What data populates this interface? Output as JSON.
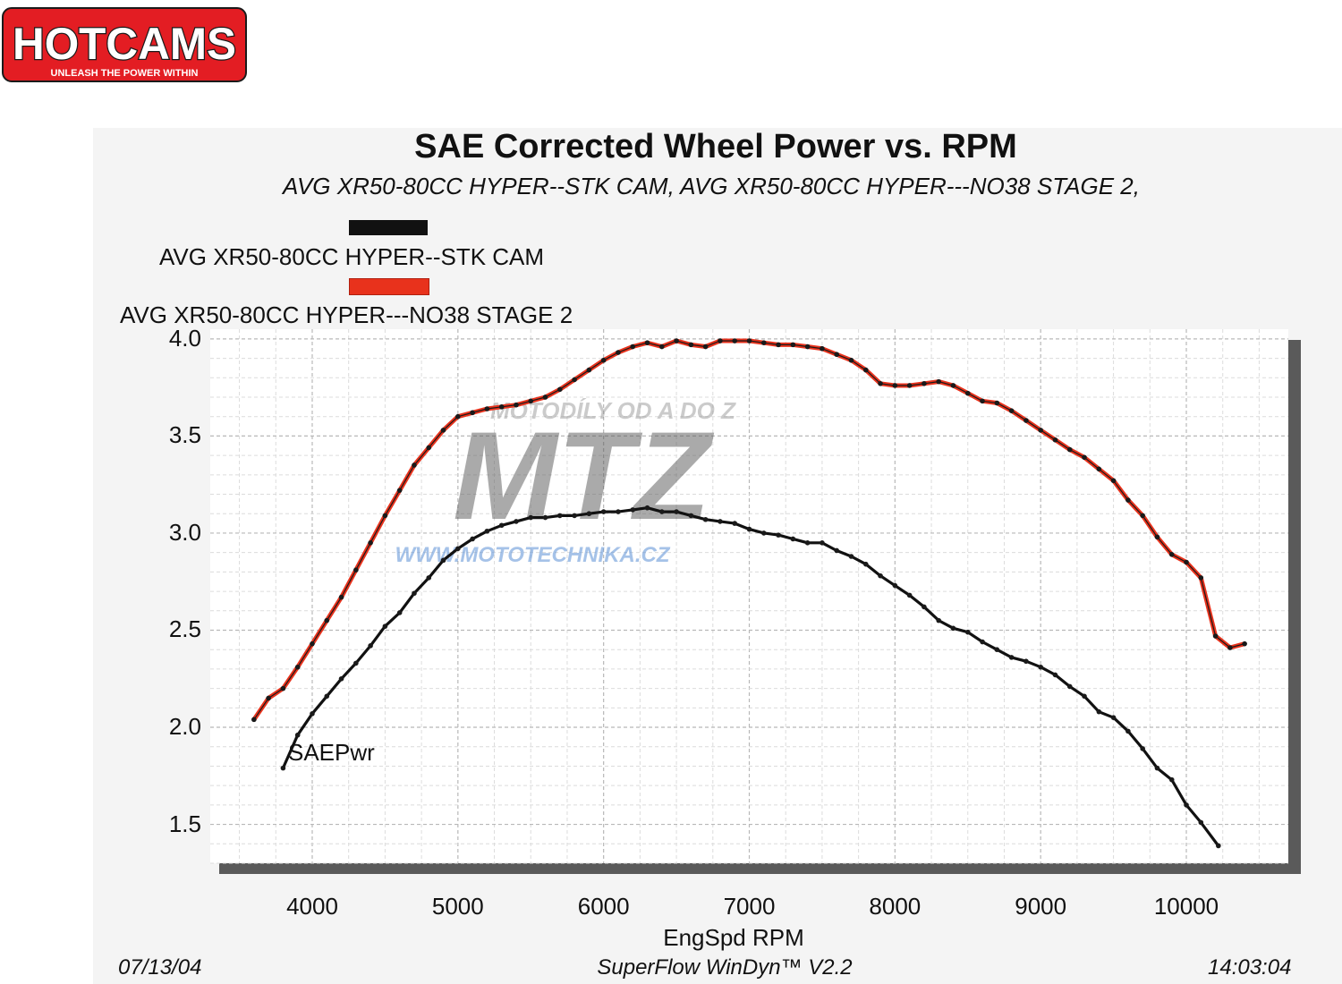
{
  "brand": {
    "name": "HOTCAMS",
    "tagline": "UNLEASH THE POWER WITHIN",
    "colors": {
      "red": "#e31d23",
      "dark": "#1a1a1a",
      "light": "#ffffff"
    }
  },
  "footer": {
    "date": "07/13/04",
    "software": "SuperFlow WinDyn™ V2.2",
    "time": "14:03:04"
  },
  "chart_data": {
    "type": "line",
    "title": "SAE Corrected Wheel Power vs. RPM",
    "subtitle": "AVG XR50-80CC HYPER--STK CAM, AVG XR50-80CC HYPER---NO38 STAGE 2,",
    "xlabel": "EngSpd  RPM",
    "series_label": "SAEPwr",
    "xlim": [
      3300,
      10700
    ],
    "ylim": [
      1.3,
      4.05
    ],
    "x_ticks": [
      4000,
      5000,
      6000,
      7000,
      8000,
      9000,
      10000
    ],
    "x_tick_labels": [
      "4000",
      "5000",
      "6000",
      "7000",
      "8000",
      "9000",
      "10000"
    ],
    "y_ticks": [
      1.5,
      2.0,
      2.5,
      3.0,
      3.5,
      4.0
    ],
    "y_tick_labels": [
      "1.5",
      "2.0",
      "2.5",
      "3.0",
      "3.5",
      "4.0"
    ],
    "grid": true,
    "legend_position": "top-left",
    "series": [
      {
        "name": "AVG XR50-80CC HYPER--STK CAM",
        "color": "#111111",
        "points": [
          [
            3800,
            1.79
          ],
          [
            3900,
            1.96
          ],
          [
            4000,
            2.07
          ],
          [
            4100,
            2.16
          ],
          [
            4200,
            2.25
          ],
          [
            4300,
            2.33
          ],
          [
            4400,
            2.42
          ],
          [
            4500,
            2.52
          ],
          [
            4600,
            2.59
          ],
          [
            4700,
            2.69
          ],
          [
            4800,
            2.77
          ],
          [
            4900,
            2.86
          ],
          [
            5000,
            2.92
          ],
          [
            5100,
            2.97
          ],
          [
            5200,
            3.01
          ],
          [
            5300,
            3.04
          ],
          [
            5400,
            3.06
          ],
          [
            5500,
            3.08
          ],
          [
            5600,
            3.08
          ],
          [
            5700,
            3.09
          ],
          [
            5800,
            3.09
          ],
          [
            5900,
            3.1
          ],
          [
            6000,
            3.11
          ],
          [
            6100,
            3.11
          ],
          [
            6200,
            3.12
          ],
          [
            6300,
            3.13
          ],
          [
            6400,
            3.11
          ],
          [
            6500,
            3.11
          ],
          [
            6600,
            3.09
          ],
          [
            6700,
            3.07
          ],
          [
            6800,
            3.06
          ],
          [
            6900,
            3.05
          ],
          [
            7000,
            3.02
          ],
          [
            7100,
            3.0
          ],
          [
            7200,
            2.99
          ],
          [
            7300,
            2.97
          ],
          [
            7400,
            2.95
          ],
          [
            7500,
            2.95
          ],
          [
            7600,
            2.91
          ],
          [
            7700,
            2.88
          ],
          [
            7800,
            2.84
          ],
          [
            7900,
            2.78
          ],
          [
            8000,
            2.73
          ],
          [
            8100,
            2.68
          ],
          [
            8200,
            2.62
          ],
          [
            8300,
            2.55
          ],
          [
            8400,
            2.51
          ],
          [
            8500,
            2.49
          ],
          [
            8600,
            2.44
          ],
          [
            8700,
            2.4
          ],
          [
            8800,
            2.36
          ],
          [
            8900,
            2.34
          ],
          [
            9000,
            2.31
          ],
          [
            9100,
            2.27
          ],
          [
            9200,
            2.21
          ],
          [
            9300,
            2.16
          ],
          [
            9400,
            2.08
          ],
          [
            9500,
            2.05
          ],
          [
            9600,
            1.98
          ],
          [
            9700,
            1.89
          ],
          [
            9800,
            1.79
          ],
          [
            9900,
            1.73
          ],
          [
            10000,
            1.6
          ],
          [
            10100,
            1.51
          ],
          [
            10220,
            1.39
          ]
        ]
      },
      {
        "name": "AVG XR50-80CC HYPER---NO38 STAGE 2",
        "color": "#e8321c",
        "points": [
          [
            3600,
            2.04
          ],
          [
            3700,
            2.15
          ],
          [
            3800,
            2.2
          ],
          [
            3900,
            2.31
          ],
          [
            4000,
            2.43
          ],
          [
            4100,
            2.55
          ],
          [
            4200,
            2.67
          ],
          [
            4300,
            2.81
          ],
          [
            4400,
            2.95
          ],
          [
            4500,
            3.09
          ],
          [
            4600,
            3.22
          ],
          [
            4700,
            3.35
          ],
          [
            4800,
            3.44
          ],
          [
            4900,
            3.53
          ],
          [
            5000,
            3.6
          ],
          [
            5100,
            3.62
          ],
          [
            5200,
            3.64
          ],
          [
            5300,
            3.65
          ],
          [
            5400,
            3.66
          ],
          [
            5500,
            3.68
          ],
          [
            5600,
            3.7
          ],
          [
            5700,
            3.74
          ],
          [
            5800,
            3.79
          ],
          [
            5900,
            3.84
          ],
          [
            6000,
            3.89
          ],
          [
            6100,
            3.93
          ],
          [
            6200,
            3.96
          ],
          [
            6300,
            3.98
          ],
          [
            6400,
            3.96
          ],
          [
            6500,
            3.99
          ],
          [
            6600,
            3.97
          ],
          [
            6700,
            3.96
          ],
          [
            6800,
            3.99
          ],
          [
            6900,
            3.99
          ],
          [
            7000,
            3.99
          ],
          [
            7100,
            3.98
          ],
          [
            7200,
            3.97
          ],
          [
            7300,
            3.97
          ],
          [
            7400,
            3.96
          ],
          [
            7500,
            3.95
          ],
          [
            7600,
            3.92
          ],
          [
            7700,
            3.89
          ],
          [
            7800,
            3.84
          ],
          [
            7900,
            3.77
          ],
          [
            8000,
            3.76
          ],
          [
            8100,
            3.76
          ],
          [
            8200,
            3.77
          ],
          [
            8300,
            3.78
          ],
          [
            8400,
            3.76
          ],
          [
            8500,
            3.72
          ],
          [
            8600,
            3.68
          ],
          [
            8700,
            3.67
          ],
          [
            8800,
            3.63
          ],
          [
            8900,
            3.58
          ],
          [
            9000,
            3.53
          ],
          [
            9100,
            3.48
          ],
          [
            9200,
            3.43
          ],
          [
            9300,
            3.39
          ],
          [
            9400,
            3.33
          ],
          [
            9500,
            3.27
          ],
          [
            9600,
            3.17
          ],
          [
            9700,
            3.09
          ],
          [
            9800,
            2.98
          ],
          [
            9900,
            2.89
          ],
          [
            10000,
            2.85
          ],
          [
            10100,
            2.77
          ],
          [
            10200,
            2.47
          ],
          [
            10300,
            2.41
          ],
          [
            10400,
            2.43
          ]
        ]
      }
    ]
  }
}
